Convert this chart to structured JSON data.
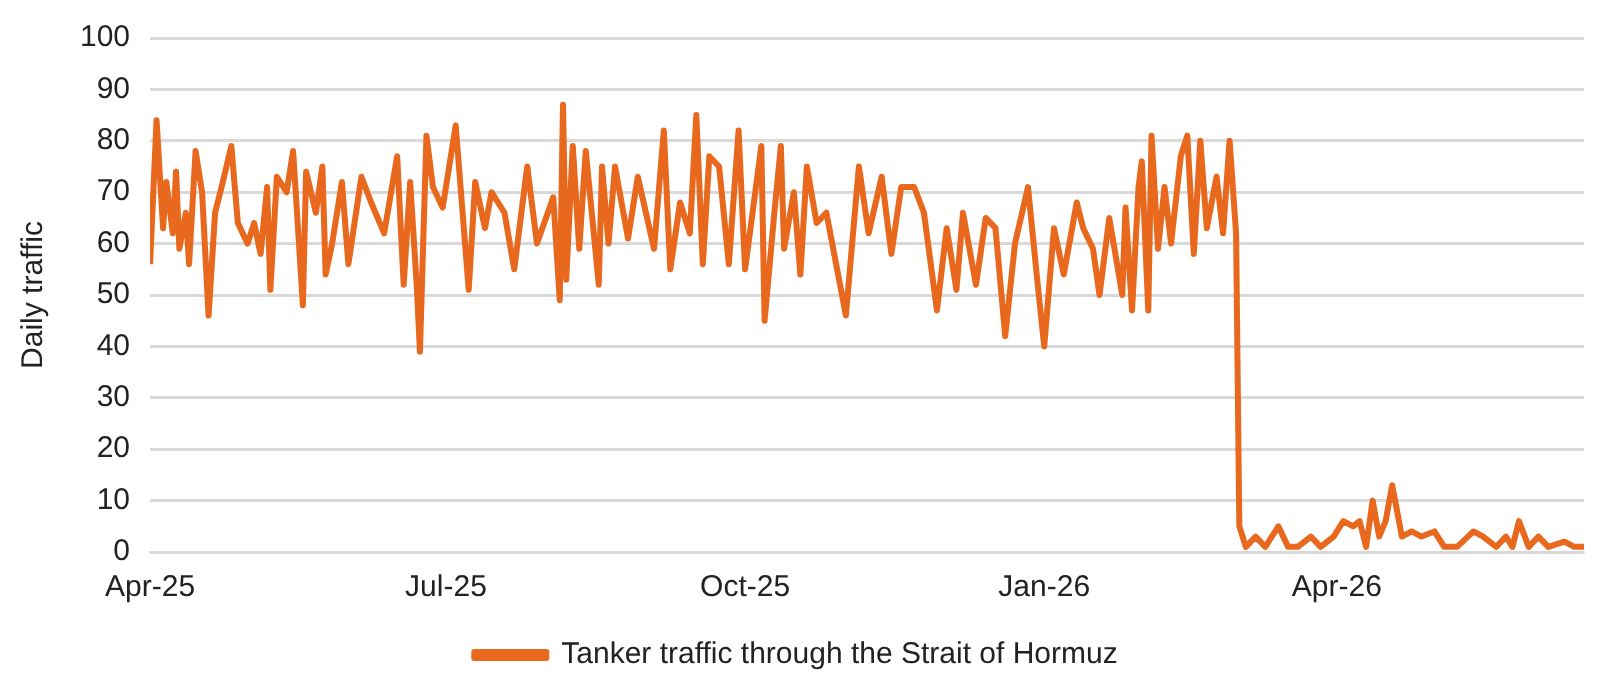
{
  "chart_data": {
    "type": "line",
    "ylabel": "Daily traffic",
    "xlim": [
      "2025-04-01",
      "2026-06-16"
    ],
    "xticks": [
      {
        "value": "2025-04-01",
        "label": "Apr-25"
      },
      {
        "value": "2025-07-01",
        "label": "Jul-25"
      },
      {
        "value": "2025-10-01",
        "label": "Oct-25"
      },
      {
        "value": "2026-01-01",
        "label": "Jan-26"
      },
      {
        "value": "2026-04-01",
        "label": "Apr-26"
      }
    ],
    "ylim": [
      0,
      100
    ],
    "yticks": [
      0,
      10,
      20,
      30,
      40,
      50,
      60,
      70,
      80,
      90,
      100
    ],
    "grid": "y",
    "legend": "bottom",
    "marker": "none",
    "line_style": "solid",
    "x": [
      "2025-04-01",
      "2025-04-03",
      "2025-04-05",
      "2025-04-06",
      "2025-04-08",
      "2025-04-09",
      "2025-04-10",
      "2025-04-12",
      "2025-04-13",
      "2025-04-15",
      "2025-04-17",
      "2025-04-19",
      "2025-04-21",
      "2025-04-23",
      "2025-04-26",
      "2025-04-28",
      "2025-05-01",
      "2025-05-03",
      "2025-05-05",
      "2025-05-07",
      "2025-05-08",
      "2025-05-10",
      "2025-05-13",
      "2025-05-15",
      "2025-05-18",
      "2025-05-19",
      "2025-05-22",
      "2025-05-24",
      "2025-05-25",
      "2025-05-27",
      "2025-05-30",
      "2025-06-01",
      "2025-06-05",
      "2025-06-08",
      "2025-06-12",
      "2025-06-16",
      "2025-06-18",
      "2025-06-20",
      "2025-06-22",
      "2025-06-23",
      "2025-06-25",
      "2025-06-27",
      "2025-06-30",
      "2025-07-04",
      "2025-07-08",
      "2025-07-10",
      "2025-07-13",
      "2025-07-15",
      "2025-07-19",
      "2025-07-22",
      "2025-07-26",
      "2025-07-29",
      "2025-08-03",
      "2025-08-05",
      "2025-08-06",
      "2025-08-07",
      "2025-08-09",
      "2025-08-11",
      "2025-08-13",
      "2025-08-17",
      "2025-08-18",
      "2025-08-20",
      "2025-08-22",
      "2025-08-26",
      "2025-08-29",
      "2025-09-03",
      "2025-09-06",
      "2025-09-08",
      "2025-09-11",
      "2025-09-14",
      "2025-09-16",
      "2025-09-18",
      "2025-09-20",
      "2025-09-23",
      "2025-09-26",
      "2025-09-29",
      "2025-10-01",
      "2025-10-06",
      "2025-10-07",
      "2025-10-10",
      "2025-10-12",
      "2025-10-13",
      "2025-10-16",
      "2025-10-18",
      "2025-10-20",
      "2025-10-23",
      "2025-10-26",
      "2025-10-29",
      "2025-11-01",
      "2025-11-05",
      "2025-11-08",
      "2025-11-12",
      "2025-11-15",
      "2025-11-18",
      "2025-11-22",
      "2025-11-25",
      "2025-11-29",
      "2025-12-02",
      "2025-12-05",
      "2025-12-07",
      "2025-12-11",
      "2025-12-14",
      "2025-12-17",
      "2025-12-20",
      "2025-12-23",
      "2025-12-27",
      "2025-12-30",
      "2026-01-01",
      "2026-01-04",
      "2026-01-07",
      "2026-01-11",
      "2026-01-13",
      "2026-01-16",
      "2026-01-18",
      "2026-01-21",
      "2026-01-25",
      "2026-01-26",
      "2026-01-28",
      "2026-01-30",
      "2026-01-31",
      "2026-02-02",
      "2026-02-03",
      "2026-02-05",
      "2026-02-07",
      "2026-02-09",
      "2026-02-12",
      "2026-02-14",
      "2026-02-16",
      "2026-02-18",
      "2026-02-20",
      "2026-02-23",
      "2026-02-25",
      "2026-02-27",
      "2026-03-01",
      "2026-03-02",
      "2026-03-04",
      "2026-03-07",
      "2026-03-10",
      "2026-03-14",
      "2026-03-17",
      "2026-03-20",
      "2026-03-24",
      "2026-03-27",
      "2026-03-31",
      "2026-04-03",
      "2026-04-06",
      "2026-04-08",
      "2026-04-10",
      "2026-04-12",
      "2026-04-14",
      "2026-04-16",
      "2026-04-18",
      "2026-04-21",
      "2026-04-24",
      "2026-04-27",
      "2026-05-01",
      "2026-05-04",
      "2026-05-08",
      "2026-05-13",
      "2026-05-16",
      "2026-05-20",
      "2026-05-23",
      "2026-05-25",
      "2026-05-27",
      "2026-05-30",
      "2026-06-02",
      "2026-06-05",
      "2026-06-10",
      "2026-06-13",
      "2026-06-16"
    ],
    "series": [
      {
        "name": "Tanker traffic through the Strait of Hormuz",
        "color": "#e8681e",
        "values": [
          56,
          84,
          63,
          72,
          62,
          74,
          59,
          66,
          56,
          78,
          70,
          46,
          66,
          71,
          79,
          64,
          60,
          64,
          58,
          71,
          51,
          73,
          70,
          78,
          48,
          74,
          66,
          75,
          54,
          60,
          72,
          56,
          73,
          68,
          62,
          77,
          52,
          72,
          52,
          39,
          81,
          71,
          67,
          83,
          51,
          72,
          63,
          70,
          66,
          55,
          75,
          60,
          69,
          49,
          87,
          53,
          79,
          59,
          78,
          52,
          75,
          60,
          75,
          61,
          73,
          59,
          82,
          55,
          68,
          62,
          85,
          56,
          77,
          75,
          56,
          82,
          55,
          79,
          45,
          66,
          79,
          59,
          70,
          54,
          75,
          64,
          66,
          56,
          46,
          75,
          62,
          73,
          58,
          71,
          71,
          66,
          47,
          63,
          51,
          66,
          52,
          65,
          63,
          42,
          60,
          71,
          52,
          40,
          63,
          54,
          68,
          63,
          59,
          50,
          65,
          50,
          67,
          47,
          71,
          76,
          47,
          81,
          59,
          71,
          60,
          77,
          81,
          58,
          80,
          63,
          73,
          62,
          80,
          62,
          5,
          1,
          3,
          1,
          5,
          1,
          1,
          3,
          1,
          3,
          6,
          5,
          6,
          1,
          10,
          3,
          6,
          13,
          3,
          4,
          3,
          4,
          1,
          1,
          4,
          3,
          1,
          3,
          1,
          6,
          1,
          3,
          1,
          2,
          1,
          1
        ]
      }
    ]
  }
}
